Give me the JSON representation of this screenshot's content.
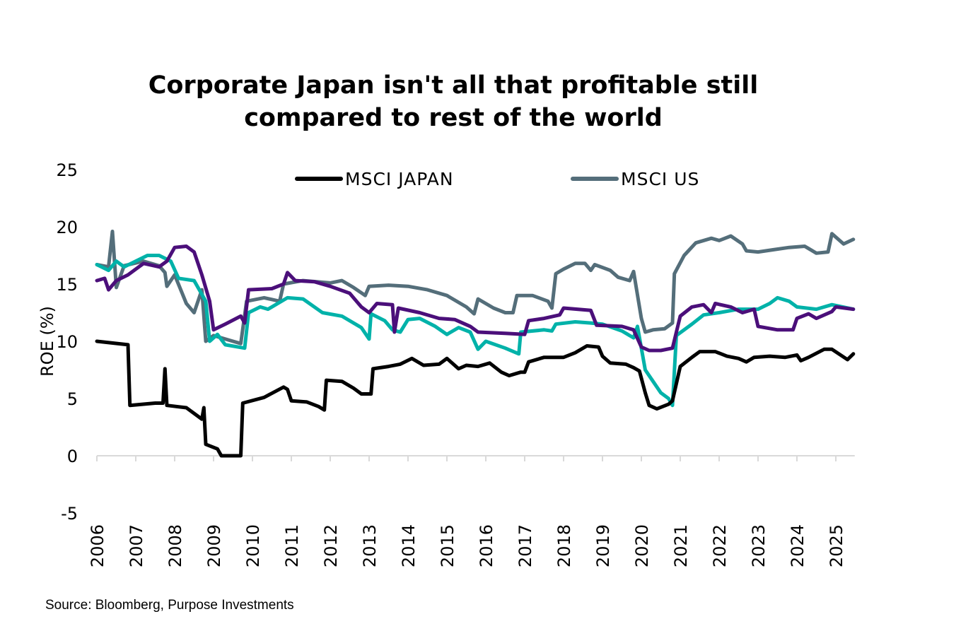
{
  "chart_data": {
    "type": "line",
    "title": "Corporate Japan isn't all that profitable still compared to rest of the world",
    "title_lines": [
      "Corporate Japan isn't all that profitable still",
      "compared to rest of the world"
    ],
    "ylabel": "ROE (%)",
    "xlabel": "",
    "ylim": [
      -5,
      25
    ],
    "yticks": [
      25,
      20,
      15,
      10,
      5,
      0,
      -5
    ],
    "xlim": [
      2006,
      2025.45
    ],
    "xticks": [
      "2006",
      "2007",
      "2008",
      "2009",
      "2010",
      "2011",
      "2012",
      "2013",
      "2014",
      "2015",
      "2016",
      "2017",
      "2018",
      "2019",
      "2020",
      "2021",
      "2022",
      "2023",
      "2024",
      "2025"
    ],
    "grid": false,
    "legend_position": "top",
    "source": "Source: Bloomberg, Purpose Investments",
    "series": [
      {
        "name": "MSCI US",
        "color": "#546e7a",
        "in_legend": true,
        "x": [
          2006.0,
          2006.3,
          2006.4,
          2006.5,
          2006.7,
          2007.2,
          2007.6,
          2007.75,
          2007.8,
          2008.0,
          2008.3,
          2008.5,
          2008.7,
          2008.8,
          2009.0,
          2009.5,
          2009.7,
          2009.85,
          2010.3,
          2010.7,
          2010.8,
          2011.3,
          2012.0,
          2012.3,
          2012.6,
          2012.9,
          2013.0,
          2013.5,
          2014.0,
          2014.5,
          2015.0,
          2015.5,
          2015.7,
          2015.8,
          2016.2,
          2016.5,
          2016.7,
          2016.8,
          2017.2,
          2017.6,
          2017.7,
          2017.8,
          2018.0,
          2018.3,
          2018.55,
          2018.7,
          2018.8,
          2019.2,
          2019.4,
          2019.7,
          2019.8,
          2020.0,
          2020.1,
          2020.3,
          2020.6,
          2020.8,
          2020.85,
          2021.1,
          2021.4,
          2021.8,
          2022.0,
          2022.3,
          2022.6,
          2022.7,
          2023.0,
          2023.4,
          2023.8,
          2024.2,
          2024.5,
          2024.8,
          2024.9,
          2025.2,
          2025.45
        ],
        "values": [
          16.7,
          16.5,
          19.6,
          14.7,
          16.6,
          17.0,
          16.6,
          16.0,
          14.8,
          15.8,
          13.3,
          12.5,
          14.5,
          10.0,
          10.5,
          10.0,
          9.8,
          13.5,
          13.8,
          13.5,
          15.0,
          15.3,
          15.1,
          15.3,
          14.7,
          14.0,
          14.8,
          14.9,
          14.8,
          14.5,
          14.0,
          13.0,
          12.4,
          13.7,
          12.9,
          12.5,
          12.5,
          14.0,
          14.0,
          13.5,
          12.9,
          15.9,
          16.3,
          16.8,
          16.8,
          16.2,
          16.7,
          16.2,
          15.6,
          15.3,
          16.1,
          12.0,
          10.8,
          11.0,
          11.1,
          11.6,
          15.9,
          17.5,
          18.6,
          19.0,
          18.8,
          19.2,
          18.5,
          17.9,
          17.8,
          18.0,
          18.2,
          18.3,
          17.7,
          17.8,
          19.4,
          18.5,
          18.9
        ]
      },
      {
        "color": "#00b2a9",
        "in_legend": false,
        "x": [
          2006.0,
          2006.3,
          2006.5,
          2006.7,
          2007.3,
          2007.6,
          2007.9,
          2008.1,
          2008.5,
          2008.8,
          2008.9,
          2009.1,
          2009.3,
          2009.8,
          2009.9,
          2010.2,
          2010.4,
          2010.9,
          2011.3,
          2011.8,
          2012.3,
          2012.8,
          2013.0,
          2013.05,
          2013.4,
          2013.6,
          2013.8,
          2014.0,
          2014.3,
          2014.7,
          2015.0,
          2015.3,
          2015.6,
          2015.8,
          2016.0,
          2016.5,
          2016.85,
          2016.9,
          2017.5,
          2017.7,
          2017.8,
          2018.3,
          2018.7,
          2019.0,
          2019.5,
          2019.8,
          2019.9,
          2020.1,
          2020.3,
          2020.5,
          2020.7,
          2020.8,
          2020.9,
          2021.3,
          2021.6,
          2022.0,
          2022.5,
          2023.0,
          2023.3,
          2023.5,
          2023.8,
          2024.0,
          2024.5,
          2024.9,
          2025.45
        ],
        "values": [
          16.7,
          16.2,
          17.0,
          16.5,
          17.5,
          17.5,
          17.0,
          15.5,
          15.3,
          13.5,
          10.0,
          10.6,
          9.7,
          9.4,
          12.5,
          13.0,
          12.8,
          13.8,
          13.7,
          12.5,
          12.2,
          11.2,
          10.2,
          12.4,
          11.8,
          11.0,
          10.8,
          11.9,
          12.0,
          11.3,
          10.6,
          11.2,
          10.8,
          9.3,
          10.0,
          9.4,
          8.9,
          10.8,
          11.0,
          10.9,
          11.5,
          11.7,
          11.6,
          11.5,
          10.9,
          10.3,
          11.3,
          7.5,
          6.5,
          5.5,
          5.0,
          4.4,
          10.5,
          11.5,
          12.3,
          12.5,
          12.8,
          12.8,
          13.3,
          13.8,
          13.5,
          13.0,
          12.8,
          13.2,
          12.8
        ]
      },
      {
        "color": "#4b0f7a",
        "in_legend": false,
        "x": [
          2006.0,
          2006.2,
          2006.3,
          2006.5,
          2006.8,
          2007.2,
          2007.6,
          2007.8,
          2008.0,
          2008.3,
          2008.5,
          2008.7,
          2008.9,
          2009.0,
          2009.3,
          2009.7,
          2009.8,
          2009.9,
          2010.5,
          2010.8,
          2010.9,
          2011.1,
          2011.6,
          2012.0,
          2012.5,
          2012.8,
          2013.0,
          2013.2,
          2013.6,
          2013.65,
          2013.75,
          2014.3,
          2014.8,
          2015.2,
          2015.6,
          2015.8,
          2016.5,
          2017.0,
          2017.1,
          2017.5,
          2017.9,
          2018.0,
          2018.7,
          2018.85,
          2019.5,
          2019.8,
          2020.0,
          2020.2,
          2020.5,
          2020.8,
          2021.0,
          2021.3,
          2021.6,
          2021.8,
          2021.9,
          2022.3,
          2022.6,
          2022.9,
          2023.0,
          2023.5,
          2023.9,
          2024.0,
          2024.3,
          2024.5,
          2024.9,
          2025.0,
          2025.45
        ],
        "values": [
          15.3,
          15.5,
          14.5,
          15.3,
          15.8,
          16.8,
          16.5,
          17.0,
          18.2,
          18.3,
          17.8,
          15.8,
          13.5,
          11.0,
          11.5,
          12.2,
          11.6,
          14.5,
          14.6,
          15.0,
          16.0,
          15.3,
          15.2,
          14.8,
          14.2,
          13.0,
          12.5,
          13.3,
          13.2,
          10.8,
          12.9,
          12.5,
          12.0,
          11.9,
          11.3,
          10.8,
          10.7,
          10.6,
          11.8,
          12.0,
          12.3,
          12.9,
          12.7,
          11.4,
          11.3,
          11.0,
          9.5,
          9.2,
          9.2,
          9.4,
          12.2,
          13.0,
          13.2,
          12.5,
          13.3,
          13.0,
          12.5,
          12.8,
          11.3,
          11.0,
          11.0,
          12.0,
          12.4,
          12.0,
          12.6,
          13.0,
          12.8
        ]
      },
      {
        "name": "MSCI JAPAN",
        "color": "#000000",
        "in_legend": true,
        "x": [
          2006.0,
          2006.8,
          2006.85,
          2007.5,
          2007.7,
          2007.75,
          2007.8,
          2008.3,
          2008.7,
          2008.75,
          2008.8,
          2009.1,
          2009.2,
          2009.7,
          2009.75,
          2010.3,
          2010.8,
          2010.9,
          2011.0,
          2011.4,
          2011.7,
          2011.85,
          2011.9,
          2012.3,
          2012.6,
          2012.8,
          2013.05,
          2013.1,
          2013.5,
          2013.8,
          2014.1,
          2014.4,
          2014.8,
          2015.0,
          2015.3,
          2015.5,
          2015.8,
          2016.1,
          2016.4,
          2016.6,
          2016.9,
          2017.0,
          2017.1,
          2017.5,
          2018.0,
          2018.3,
          2018.6,
          2018.9,
          2019.0,
          2019.2,
          2019.6,
          2019.8,
          2019.95,
          2020.1,
          2020.2,
          2020.4,
          2020.7,
          2020.8,
          2021.0,
          2021.3,
          2021.5,
          2021.9,
          2022.2,
          2022.5,
          2022.7,
          2022.9,
          2023.3,
          2023.7,
          2024.0,
          2024.1,
          2024.3,
          2024.7,
          2024.9,
          2025.3,
          2025.45
        ],
        "values": [
          10.0,
          9.7,
          4.4,
          4.6,
          4.6,
          7.6,
          4.4,
          4.2,
          3.2,
          4.2,
          1.0,
          0.6,
          0.0,
          0.0,
          4.6,
          5.1,
          6.0,
          5.8,
          4.8,
          4.7,
          4.3,
          4.0,
          6.6,
          6.5,
          5.9,
          5.4,
          5.4,
          7.6,
          7.8,
          8.0,
          8.5,
          7.9,
          8.0,
          8.5,
          7.6,
          7.9,
          7.8,
          8.1,
          7.3,
          7.0,
          7.3,
          7.3,
          8.2,
          8.6,
          8.6,
          9.0,
          9.6,
          9.5,
          8.7,
          8.1,
          8.0,
          7.7,
          7.4,
          5.5,
          4.4,
          4.1,
          4.5,
          4.8,
          7.8,
          8.6,
          9.1,
          9.1,
          8.7,
          8.5,
          8.2,
          8.6,
          8.7,
          8.6,
          8.8,
          8.3,
          8.6,
          9.3,
          9.3,
          8.4,
          8.9
        ]
      }
    ]
  }
}
